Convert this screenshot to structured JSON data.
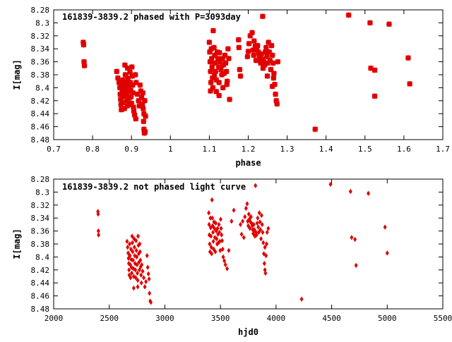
{
  "chart_data": [
    {
      "type": "scatter",
      "title": "161839-3839.2 phased with P=3093day",
      "xlabel": "phase",
      "ylabel": "I[mag]",
      "xlim": [
        0.7,
        1.7
      ],
      "ylim": [
        8.28,
        8.48
      ],
      "y_inverted": true,
      "grid": false,
      "legend": "none",
      "marker_color": "#e00000",
      "marker": "filled-square-star",
      "xticks": [
        "0.7",
        "0.8",
        "0.9",
        "1",
        "1.1",
        "1.2",
        "1.3",
        "1.4",
        "1.5",
        "1.6",
        "1.7"
      ],
      "yticks": [
        "8.28",
        "8.3",
        "8.32",
        "8.34",
        "8.36",
        "8.38",
        "8.4",
        "8.42",
        "8.44",
        "8.46",
        "8.48"
      ],
      "points": [
        [
          0.776,
          8.33
        ],
        [
          0.777,
          8.334
        ],
        [
          0.778,
          8.36
        ],
        [
          0.779,
          8.366
        ],
        [
          0.862,
          8.375
        ],
        [
          0.865,
          8.385
        ],
        [
          0.868,
          8.392
        ],
        [
          0.87,
          8.4
        ],
        [
          0.871,
          8.41
        ],
        [
          0.872,
          8.418
        ],
        [
          0.873,
          8.426
        ],
        [
          0.874,
          8.434
        ],
        [
          0.875,
          8.395
        ],
        [
          0.876,
          8.404
        ],
        [
          0.877,
          8.414
        ],
        [
          0.878,
          8.388
        ],
        [
          0.879,
          8.423
        ],
        [
          0.88,
          8.398
        ],
        [
          0.881,
          8.408
        ],
        [
          0.882,
          8.432
        ],
        [
          0.883,
          8.365
        ],
        [
          0.884,
          8.38
        ],
        [
          0.885,
          8.392
        ],
        [
          0.886,
          8.402
        ],
        [
          0.887,
          8.412
        ],
        [
          0.888,
          8.42
        ],
        [
          0.889,
          8.428
        ],
        [
          0.89,
          8.37
        ],
        [
          0.891,
          8.385
        ],
        [
          0.892,
          8.398
        ],
        [
          0.893,
          8.406
        ],
        [
          0.894,
          8.416
        ],
        [
          0.895,
          8.426
        ],
        [
          0.896,
          8.376
        ],
        [
          0.897,
          8.392
        ],
        [
          0.898,
          8.404
        ],
        [
          0.899,
          8.414
        ],
        [
          0.9,
          8.424
        ],
        [
          0.901,
          8.368
        ],
        [
          0.902,
          8.382
        ],
        [
          0.903,
          8.396
        ],
        [
          0.904,
          8.408
        ],
        [
          0.905,
          8.43
        ],
        [
          0.906,
          8.436
        ],
        [
          0.908,
          8.442
        ],
        [
          0.91,
          8.38
        ],
        [
          0.912,
          8.392
        ],
        [
          0.915,
          8.41
        ],
        [
          0.918,
          8.42
        ],
        [
          0.92,
          8.428
        ],
        [
          0.922,
          8.396
        ],
        [
          0.924,
          8.405
        ],
        [
          0.926,
          8.415
        ],
        [
          0.928,
          8.425
        ],
        [
          0.93,
          8.432
        ],
        [
          0.931,
          8.452
        ],
        [
          0.932,
          8.464
        ],
        [
          0.933,
          8.47
        ],
        [
          0.935,
          8.468
        ],
        [
          0.936,
          8.444
        ],
        [
          0.932,
          8.44
        ],
        [
          0.929,
          8.408
        ],
        [
          0.934,
          8.42
        ],
        [
          0.911,
          8.448
        ],
        [
          1.1,
          8.33
        ],
        [
          1.101,
          8.345
        ],
        [
          1.102,
          8.36
        ],
        [
          1.103,
          8.375
        ],
        [
          1.104,
          8.392
        ],
        [
          1.105,
          8.34
        ],
        [
          1.106,
          8.355
        ],
        [
          1.107,
          8.368
        ],
        [
          1.108,
          8.385
        ],
        [
          1.109,
          8.4
        ],
        [
          1.11,
          8.312
        ],
        [
          1.112,
          8.338
        ],
        [
          1.114,
          8.35
        ],
        [
          1.115,
          8.362
        ],
        [
          1.116,
          8.375
        ],
        [
          1.118,
          8.388
        ],
        [
          1.12,
          8.345
        ],
        [
          1.122,
          8.355
        ],
        [
          1.124,
          8.368
        ],
        [
          1.125,
          8.392
        ],
        [
          1.126,
          8.346
        ],
        [
          1.128,
          8.36
        ],
        [
          1.13,
          8.372
        ],
        [
          1.132,
          8.38
        ],
        [
          1.134,
          8.355
        ],
        [
          1.136,
          8.365
        ],
        [
          1.138,
          8.378
        ],
        [
          1.14,
          8.35
        ],
        [
          1.142,
          8.362
        ],
        [
          1.144,
          8.375
        ],
        [
          1.146,
          8.39
        ],
        [
          1.148,
          8.34
        ],
        [
          1.15,
          8.355
        ],
        [
          1.118,
          8.406
        ],
        [
          1.125,
          8.412
        ],
        [
          1.135,
          8.4
        ],
        [
          1.152,
          8.418
        ],
        [
          1.145,
          8.395
        ],
        [
          1.103,
          8.405
        ],
        [
          1.113,
          8.382
        ],
        [
          1.175,
          8.326
        ],
        [
          1.176,
          8.338
        ],
        [
          1.178,
          8.372
        ],
        [
          1.18,
          8.382
        ],
        [
          1.198,
          8.352
        ],
        [
          1.2,
          8.344
        ],
        [
          1.202,
          8.332
        ],
        [
          1.205,
          8.32
        ],
        [
          1.21,
          8.315
        ],
        [
          1.212,
          8.342
        ],
        [
          1.214,
          8.35
        ],
        [
          1.215,
          8.328
        ],
        [
          1.218,
          8.336
        ],
        [
          1.22,
          8.358
        ],
        [
          1.222,
          8.342
        ],
        [
          1.224,
          8.335
        ],
        [
          1.226,
          8.345
        ],
        [
          1.228,
          8.35
        ],
        [
          1.23,
          8.355
        ],
        [
          1.232,
          8.362
        ],
        [
          1.234,
          8.348
        ],
        [
          1.236,
          8.356
        ],
        [
          1.237,
          8.29
        ],
        [
          1.238,
          8.37
        ],
        [
          1.24,
          8.36
        ],
        [
          1.242,
          8.365
        ],
        [
          1.244,
          8.345
        ],
        [
          1.246,
          8.338
        ],
        [
          1.248,
          8.352
        ],
        [
          1.25,
          8.362
        ],
        [
          1.252,
          8.33
        ],
        [
          1.254,
          8.345
        ],
        [
          1.256,
          8.358
        ],
        [
          1.258,
          8.372
        ],
        [
          1.26,
          8.335
        ],
        [
          1.262,
          8.35
        ],
        [
          1.264,
          8.362
        ],
        [
          1.266,
          8.378
        ],
        [
          1.268,
          8.395
        ],
        [
          1.27,
          8.41
        ],
        [
          1.272,
          8.42
        ],
        [
          1.274,
          8.425
        ],
        [
          1.265,
          8.385
        ],
        [
          1.262,
          8.398
        ],
        [
          1.249,
          8.382
        ],
        [
          1.276,
          8.36
        ],
        [
          1.372,
          8.464
        ],
        [
          1.458,
          8.288
        ],
        [
          1.513,
          8.3
        ],
        [
          1.562,
          8.302
        ],
        [
          1.515,
          8.37
        ],
        [
          1.525,
          8.373
        ],
        [
          1.525,
          8.413
        ],
        [
          1.611,
          8.354
        ],
        [
          1.615,
          8.394
        ]
      ]
    },
    {
      "type": "scatter",
      "title": "161839-3839.2 not phased light curve",
      "xlabel": "hjd0",
      "ylabel": "I[mag]",
      "xlim": [
        2000,
        5500
      ],
      "ylim": [
        8.28,
        8.48
      ],
      "y_inverted": true,
      "grid": false,
      "legend": "none",
      "marker_color": "#e00000",
      "marker": "diamond",
      "xticks": [
        "2000",
        "2500",
        "3000",
        "3500",
        "4000",
        "4500",
        "5000",
        "5500"
      ],
      "yticks": [
        "8.28",
        "8.3",
        "8.32",
        "8.34",
        "8.36",
        "8.38",
        "8.4",
        "8.42",
        "8.44",
        "8.46",
        "8.48"
      ],
      "points": [
        [
          2398,
          8.33
        ],
        [
          2400,
          8.334
        ],
        [
          2402,
          8.36
        ],
        [
          2404,
          8.366
        ],
        [
          2660,
          8.376
        ],
        [
          2665,
          8.385
        ],
        [
          2670,
          8.394
        ],
        [
          2673,
          8.402
        ],
        [
          2676,
          8.41
        ],
        [
          2678,
          8.42
        ],
        [
          2680,
          8.428
        ],
        [
          2683,
          8.38
        ],
        [
          2686,
          8.398
        ],
        [
          2689,
          8.412
        ],
        [
          2692,
          8.432
        ],
        [
          2695,
          8.388
        ],
        [
          2698,
          8.404
        ],
        [
          2700,
          8.416
        ],
        [
          2702,
          8.425
        ],
        [
          2705,
          8.368
        ],
        [
          2708,
          8.378
        ],
        [
          2711,
          8.392
        ],
        [
          2714,
          8.405
        ],
        [
          2717,
          8.418
        ],
        [
          2720,
          8.43
        ],
        [
          2723,
          8.372
        ],
        [
          2726,
          8.385
        ],
        [
          2729,
          8.398
        ],
        [
          2732,
          8.41
        ],
        [
          2735,
          8.42
        ],
        [
          2738,
          8.432
        ],
        [
          2741,
          8.375
        ],
        [
          2744,
          8.39
        ],
        [
          2747,
          8.4
        ],
        [
          2750,
          8.412
        ],
        [
          2753,
          8.425
        ],
        [
          2756,
          8.436
        ],
        [
          2759,
          8.368
        ],
        [
          2762,
          8.382
        ],
        [
          2765,
          8.395
        ],
        [
          2768,
          8.408
        ],
        [
          2771,
          8.42
        ],
        [
          2774,
          8.38
        ],
        [
          2777,
          8.392
        ],
        [
          2780,
          8.405
        ],
        [
          2783,
          8.415
        ],
        [
          2786,
          8.428
        ],
        [
          2789,
          8.44
        ],
        [
          2792,
          8.412
        ],
        [
          2800,
          8.422
        ],
        [
          2810,
          8.432
        ],
        [
          2820,
          8.446
        ],
        [
          2830,
          8.438
        ],
        [
          2840,
          8.398
        ],
        [
          2846,
          8.416
        ],
        [
          2852,
          8.426
        ],
        [
          2858,
          8.434
        ],
        [
          2862,
          8.456
        ],
        [
          2868,
          8.468
        ],
        [
          2874,
          8.47
        ],
        [
          2756,
          8.446
        ],
        [
          2720,
          8.448
        ],
        [
          3395,
          8.332
        ],
        [
          3398,
          8.35
        ],
        [
          3400,
          8.366
        ],
        [
          3403,
          8.38
        ],
        [
          3406,
          8.392
        ],
        [
          3409,
          8.34
        ],
        [
          3412,
          8.355
        ],
        [
          3415,
          8.368
        ],
        [
          3418,
          8.385
        ],
        [
          3421,
          8.395
        ],
        [
          3424,
          8.312
        ],
        [
          3427,
          8.34
        ],
        [
          3430,
          8.352
        ],
        [
          3433,
          8.362
        ],
        [
          3436,
          8.376
        ],
        [
          3439,
          8.388
        ],
        [
          3442,
          8.346
        ],
        [
          3446,
          8.356
        ],
        [
          3450,
          8.37
        ],
        [
          3454,
          8.392
        ],
        [
          3458,
          8.348
        ],
        [
          3462,
          8.36
        ],
        [
          3466,
          8.372
        ],
        [
          3470,
          8.38
        ],
        [
          3474,
          8.356
        ],
        [
          3478,
          8.365
        ],
        [
          3482,
          8.378
        ],
        [
          3486,
          8.35
        ],
        [
          3490,
          8.362
        ],
        [
          3494,
          8.376
        ],
        [
          3498,
          8.39
        ],
        [
          3502,
          8.342
        ],
        [
          3506,
          8.356
        ],
        [
          3510,
          8.366
        ],
        [
          3515,
          8.375
        ],
        [
          3520,
          8.388
        ],
        [
          3525,
          8.4
        ],
        [
          3535,
          8.406
        ],
        [
          3545,
          8.412
        ],
        [
          3560,
          8.418
        ],
        [
          3575,
          8.39
        ],
        [
          3600,
          8.345
        ],
        [
          3620,
          8.328
        ],
        [
          3680,
          8.35
        ],
        [
          3690,
          8.365
        ],
        [
          3700,
          8.345
        ],
        [
          3710,
          8.37
        ],
        [
          3720,
          8.338
        ],
        [
          3730,
          8.325
        ],
        [
          3740,
          8.318
        ],
        [
          3745,
          8.345
        ],
        [
          3750,
          8.352
        ],
        [
          3755,
          8.334
        ],
        [
          3760,
          8.342
        ],
        [
          3765,
          8.356
        ],
        [
          3770,
          8.346
        ],
        [
          3775,
          8.338
        ],
        [
          3780,
          8.348
        ],
        [
          3785,
          8.352
        ],
        [
          3790,
          8.358
        ],
        [
          3795,
          8.364
        ],
        [
          3800,
          8.35
        ],
        [
          3805,
          8.358
        ],
        [
          3810,
          8.368
        ],
        [
          3815,
          8.29
        ],
        [
          3820,
          8.362
        ],
        [
          3825,
          8.366
        ],
        [
          3830,
          8.348
        ],
        [
          3835,
          8.34
        ],
        [
          3840,
          8.354
        ],
        [
          3845,
          8.362
        ],
        [
          3850,
          8.332
        ],
        [
          3855,
          8.346
        ],
        [
          3860,
          8.358
        ],
        [
          3865,
          8.372
        ],
        [
          3870,
          8.336
        ],
        [
          3875,
          8.35
        ],
        [
          3880,
          8.362
        ],
        [
          3885,
          8.378
        ],
        [
          3890,
          8.395
        ],
        [
          3895,
          8.41
        ],
        [
          3900,
          8.42
        ],
        [
          3905,
          8.425
        ],
        [
          3900,
          8.385
        ],
        [
          3910,
          8.398
        ],
        [
          3915,
          8.38
        ],
        [
          3920,
          8.362
        ],
        [
          3930,
          8.356
        ],
        [
          4230,
          8.465
        ],
        [
          4490,
          8.288
        ],
        [
          4670,
          8.299
        ],
        [
          4830,
          8.302
        ],
        [
          4680,
          8.37
        ],
        [
          4710,
          8.373
        ],
        [
          4720,
          8.413
        ],
        [
          4980,
          8.354
        ],
        [
          5000,
          8.394
        ]
      ]
    }
  ]
}
